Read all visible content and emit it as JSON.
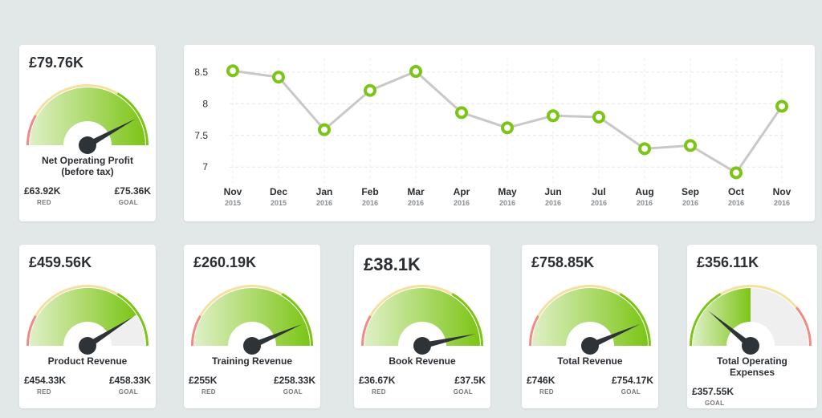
{
  "colors": {
    "background": "#e2e7e8",
    "card": "#ffffff",
    "gauge_green": "#7cc516",
    "gauge_light": "#dff0c6",
    "gauge_red": "#f08b84",
    "gauge_yellow": "#f4e1a0",
    "needle": "#2e3338",
    "line": "#c8c8c8",
    "marker": "#7cc516"
  },
  "gauges": [
    {
      "id": "net-operating-profit",
      "value": "£79.76K",
      "title_lines": [
        "Net Operating Profit",
        "(before tax)"
      ],
      "red_value": "£63.92K",
      "red_label": "RED",
      "goal_value": "£75.36K",
      "goal_label": "GOAL",
      "needle_fraction": 0.84,
      "fill_fraction": 1.0,
      "inverted": false
    },
    {
      "id": "product-revenue",
      "value": "£459.56K",
      "title_lines": [
        "Product Revenue"
      ],
      "red_value": "£454.33K",
      "red_label": "RED",
      "goal_value": "£458.33K",
      "goal_label": "GOAL",
      "needle_fraction": 0.82,
      "fill_fraction": 0.82,
      "inverted": false
    },
    {
      "id": "training-revenue",
      "value": "£260.19K",
      "title_lines": [
        "Training Revenue"
      ],
      "red_value": "£255K",
      "red_label": "RED",
      "goal_value": "£258.33K",
      "goal_label": "GOAL",
      "needle_fraction": 0.87,
      "fill_fraction": 1.0,
      "inverted": false
    },
    {
      "id": "book-revenue",
      "value": "£38.1K",
      "title_lines": [
        "Book Revenue"
      ],
      "red_value": "£36.67K",
      "red_label": "RED",
      "goal_value": "£37.5K",
      "goal_label": "GOAL",
      "needle_fraction": 0.93,
      "fill_fraction": 1.0,
      "inverted": false
    },
    {
      "id": "total-revenue",
      "value": "£758.85K",
      "title_lines": [
        "Total Revenue"
      ],
      "red_value": "£746K",
      "red_label": "RED",
      "goal_value": "£754.17K",
      "goal_label": "GOAL",
      "needle_fraction": 0.87,
      "fill_fraction": 1.0,
      "inverted": false
    },
    {
      "id": "total-operating-expenses",
      "value": "£356.11K",
      "title_lines": [
        "Total Operating",
        "Expenses"
      ],
      "red_value": "",
      "red_label": "",
      "goal_value": "£357.55K",
      "goal_label": "GOAL",
      "needle_fraction": 0.22,
      "fill_fraction": 0.5,
      "inverted": true
    }
  ],
  "chart_data": {
    "type": "line",
    "title": "",
    "xlabel": "",
    "ylabel": "",
    "categories": [
      [
        "Nov",
        "2015"
      ],
      [
        "Dec",
        "2015"
      ],
      [
        "Jan",
        "2016"
      ],
      [
        "Feb",
        "2016"
      ],
      [
        "Mar",
        "2016"
      ],
      [
        "Apr",
        "2016"
      ],
      [
        "May",
        "2016"
      ],
      [
        "Jun",
        "2016"
      ],
      [
        "Jul",
        "2016"
      ],
      [
        "Aug",
        "2016"
      ],
      [
        "Sep",
        "2016"
      ],
      [
        "Oct",
        "2016"
      ],
      [
        "Nov",
        "2016"
      ]
    ],
    "values": [
      8.52,
      8.42,
      7.59,
      8.21,
      8.51,
      7.86,
      7.62,
      7.81,
      7.79,
      7.29,
      7.34,
      6.91,
      7.96
    ],
    "ylim": [
      6.8,
      8.65
    ],
    "yticks": [
      "8.5",
      "8",
      "7.5",
      "7"
    ],
    "grid": true,
    "legend": "none"
  }
}
